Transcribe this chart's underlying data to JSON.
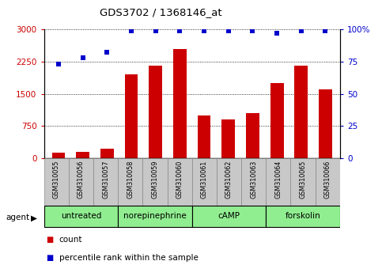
{
  "title": "GDS3702 / 1368146_at",
  "samples": [
    "GSM310055",
    "GSM310056",
    "GSM310057",
    "GSM310058",
    "GSM310059",
    "GSM310060",
    "GSM310061",
    "GSM310062",
    "GSM310063",
    "GSM310064",
    "GSM310065",
    "GSM310066"
  ],
  "counts": [
    120,
    150,
    230,
    1950,
    2150,
    2550,
    1000,
    900,
    1050,
    1750,
    2150,
    1600
  ],
  "percentiles": [
    73,
    78,
    82,
    99,
    99,
    99,
    99,
    99,
    99,
    97,
    99,
    99
  ],
  "groups": [
    {
      "label": "untreated",
      "start": 0,
      "end": 3
    },
    {
      "label": "norepinephrine",
      "start": 3,
      "end": 6
    },
    {
      "label": "cAMP",
      "start": 6,
      "end": 9
    },
    {
      "label": "forskolin",
      "start": 9,
      "end": 12
    }
  ],
  "ylim_left": [
    0,
    3000
  ],
  "ylim_right": [
    0,
    100
  ],
  "yticks_left": [
    0,
    750,
    1500,
    2250,
    3000
  ],
  "ytick_labels_left": [
    "0",
    "750",
    "1500",
    "2250",
    "3000"
  ],
  "yticks_right": [
    0,
    25,
    50,
    75,
    100
  ],
  "ytick_labels_right": [
    "0",
    "25",
    "50",
    "75",
    "100%"
  ],
  "bar_color": "#cc0000",
  "dot_color": "#0000cc",
  "group_color": "#90ee90",
  "group_border_color": "#000000",
  "tick_label_bg": "#c8c8c8",
  "legend_items": [
    {
      "label": "count",
      "color": "#cc0000"
    },
    {
      "label": "percentile rank within the sample",
      "color": "#0000cc"
    }
  ],
  "figsize": [
    4.83,
    3.54
  ],
  "dpi": 100
}
